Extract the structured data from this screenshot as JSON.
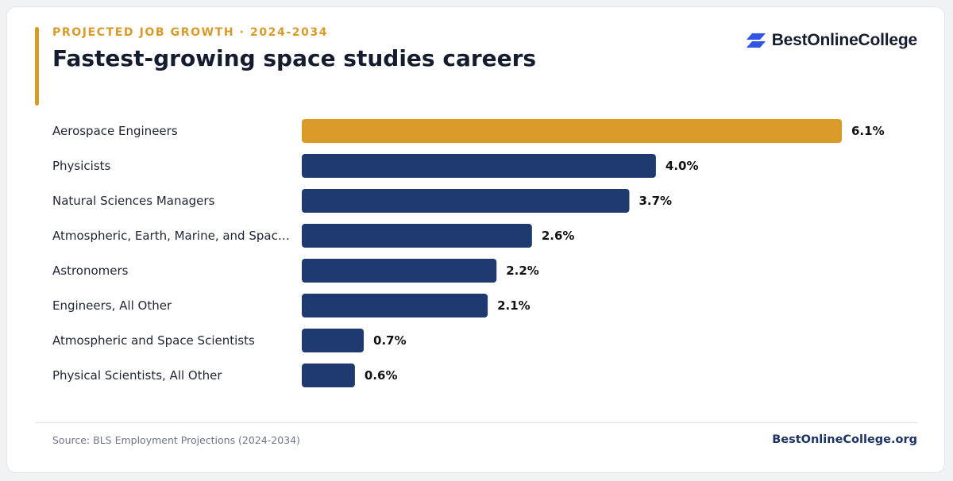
{
  "header": {
    "eyebrow": "PROJECTED JOB GROWTH · 2024-2034",
    "title": "Fastest-growing space studies careers"
  },
  "brand": {
    "name": "BestOnlineCollege",
    "icon": "stacked-parallelogram-logo-icon",
    "icon_color": "#2f55e4"
  },
  "colors": {
    "highlight": "#d99a28",
    "bar": "#1e3a6e",
    "accent": "#d99a28"
  },
  "chart_data": {
    "type": "bar",
    "orientation": "horizontal",
    "categories": [
      "Aerospace Engineers",
      "Physicists",
      "Natural Sciences Managers",
      "Atmospheric, Earth, Marine, and Spac…",
      "Astronomers",
      "Engineers, All Other",
      "Atmospheric and Space Scientists",
      "Physical Scientists, All Other"
    ],
    "values": [
      6.1,
      4.0,
      3.7,
      2.6,
      2.2,
      2.1,
      0.7,
      0.6
    ],
    "value_labels": [
      "6.1%",
      "4.0%",
      "3.7%",
      "2.6%",
      "2.2%",
      "2.1%",
      "0.7%",
      "0.6%"
    ],
    "highlight_index": 0,
    "xlim": [
      0,
      6.1
    ],
    "grid": false,
    "legend": "none"
  },
  "footer": {
    "source": "Source: BLS Employment Projections (2024-2034)",
    "site": "BestOnlineCollege.org"
  }
}
